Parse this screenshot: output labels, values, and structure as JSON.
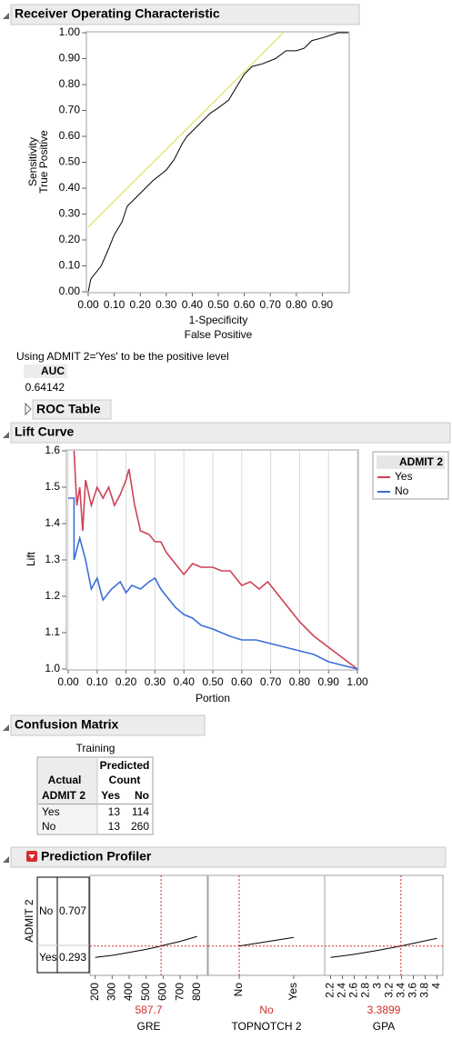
{
  "roc_section": {
    "title": "Receiver Operating Characteristic",
    "note": "Using ADMIT 2='Yes' to be the positive level",
    "auc_label": "AUC",
    "auc": 0.64142,
    "roc_table": "ROC Table"
  },
  "lift_section": {
    "title": "Lift Curve"
  },
  "chart_data": [
    {
      "type": "line",
      "xlabel": [
        "1-Specificity",
        "False Positive"
      ],
      "ylabel": [
        "Sensitivity",
        "True Positive"
      ],
      "xlim": [
        0,
        1
      ],
      "ylim": [
        0,
        1
      ],
      "grid": false,
      "xticks": [
        {
          "value": 0,
          "label": "0.00"
        },
        {
          "value": 0.1,
          "label": "0.10"
        },
        {
          "value": 0.2,
          "label": "0.20"
        },
        {
          "value": 0.3,
          "label": "0.30"
        },
        {
          "value": 0.4,
          "label": "0.40"
        },
        {
          "value": 0.5,
          "label": "0.50"
        },
        {
          "value": 0.6,
          "label": "0.60"
        },
        {
          "value": 0.7,
          "label": "0.70"
        },
        {
          "value": 0.8,
          "label": "0.80"
        },
        {
          "value": 0.9,
          "label": "0.90"
        }
      ],
      "yticks": [
        {
          "value": 0,
          "label": "0.00"
        },
        {
          "value": 0.1,
          "label": "0.10"
        },
        {
          "value": 0.2,
          "label": "0.20"
        },
        {
          "value": 0.3,
          "label": "0.30"
        },
        {
          "value": 0.4,
          "label": "0.40"
        },
        {
          "value": 0.5,
          "label": "0.50"
        },
        {
          "value": 0.6,
          "label": "0.60"
        },
        {
          "value": 0.7,
          "label": "0.70"
        },
        {
          "value": 0.8,
          "label": "0.80"
        },
        {
          "value": 0.9,
          "label": "0.90"
        },
        {
          "value": 1,
          "label": "1.00"
        }
      ],
      "reference_line": {
        "color": "#e2e25c",
        "x": [
          0,
          0.75
        ],
        "values": [
          0.25,
          1
        ]
      },
      "series": [
        {
          "color": "#000000",
          "x": [
            0,
            0.01,
            0.05,
            0.08,
            0.1,
            0.13,
            0.15,
            0.18,
            0.22,
            0.25,
            0.3,
            0.33,
            0.36,
            0.38,
            0.42,
            0.47,
            0.5,
            0.54,
            0.57,
            0.6,
            0.63,
            0.67,
            0.72,
            0.76,
            0.8,
            0.83,
            0.86,
            0.9,
            0.93,
            0.96,
            1
          ],
          "values": [
            0,
            0.05,
            0.1,
            0.17,
            0.22,
            0.27,
            0.33,
            0.36,
            0.4,
            0.43,
            0.47,
            0.51,
            0.57,
            0.6,
            0.64,
            0.69,
            0.71,
            0.74,
            0.79,
            0.84,
            0.87,
            0.88,
            0.9,
            0.93,
            0.93,
            0.94,
            0.97,
            0.98,
            0.99,
            1,
            1
          ]
        }
      ]
    },
    {
      "type": "line",
      "xlabel": [
        "Portion"
      ],
      "ylabel": [
        "Lift"
      ],
      "legend_title": "ADMIT 2",
      "xlim": [
        0,
        1
      ],
      "ylim": [
        1,
        1.6
      ],
      "grid": true,
      "xticks": [
        {
          "value": 0,
          "label": "0.00"
        },
        {
          "value": 0.1,
          "label": "0.10"
        },
        {
          "value": 0.2,
          "label": "0.20"
        },
        {
          "value": 0.3,
          "label": "0.30"
        },
        {
          "value": 0.4,
          "label": "0.40"
        },
        {
          "value": 0.5,
          "label": "0.50"
        },
        {
          "value": 0.6,
          "label": "0.60"
        },
        {
          "value": 0.7,
          "label": "0.70"
        },
        {
          "value": 0.8,
          "label": "0.80"
        },
        {
          "value": 0.9,
          "label": "0.90"
        },
        {
          "value": 1,
          "label": "1.00"
        }
      ],
      "yticks": [
        {
          "value": 1,
          "label": "1.0"
        },
        1.1,
        1.2,
        1.3,
        1.4,
        1.5,
        1.6
      ],
      "series": [
        {
          "name": "Yes",
          "color": "#cc4256",
          "x": [
            0.02,
            0.03,
            0.04,
            0.05,
            0.06,
            0.08,
            0.1,
            0.12,
            0.14,
            0.16,
            0.18,
            0.2,
            0.21,
            0.23,
            0.25,
            0.28,
            0.3,
            0.32,
            0.34,
            0.36,
            0.38,
            0.4,
            0.43,
            0.46,
            0.5,
            0.53,
            0.56,
            0.6,
            0.63,
            0.66,
            0.69,
            0.72,
            0.76,
            0.8,
            0.85,
            0.9,
            0.95,
            1
          ],
          "values": [
            1.6,
            1.45,
            1.5,
            1.38,
            1.52,
            1.45,
            1.5,
            1.47,
            1.5,
            1.45,
            1.48,
            1.52,
            1.55,
            1.45,
            1.38,
            1.37,
            1.35,
            1.35,
            1.32,
            1.3,
            1.28,
            1.26,
            1.29,
            1.28,
            1.28,
            1.27,
            1.27,
            1.23,
            1.24,
            1.22,
            1.24,
            1.21,
            1.17,
            1.13,
            1.09,
            1.06,
            1.03,
            1
          ]
        },
        {
          "name": "No",
          "color": "#3a6fd6",
          "x": [
            0,
            0.02,
            0.02,
            0.04,
            0.06,
            0.08,
            0.1,
            0.12,
            0.15,
            0.18,
            0.2,
            0.22,
            0.25,
            0.28,
            0.3,
            0.32,
            0.35,
            0.37,
            0.4,
            0.43,
            0.46,
            0.5,
            0.53,
            0.56,
            0.6,
            0.65,
            0.7,
            0.75,
            0.8,
            0.85,
            0.9,
            0.95,
            1
          ],
          "values": [
            1.47,
            1.47,
            1.3,
            1.36,
            1.3,
            1.22,
            1.25,
            1.19,
            1.22,
            1.24,
            1.21,
            1.23,
            1.22,
            1.24,
            1.25,
            1.22,
            1.19,
            1.17,
            1.15,
            1.14,
            1.12,
            1.11,
            1.1,
            1.09,
            1.08,
            1.08,
            1.07,
            1.06,
            1.05,
            1.04,
            1.02,
            1.01,
            1
          ]
        }
      ]
    }
  ],
  "confusion_matrix": {
    "title": "Confusion Matrix",
    "caption": "Training",
    "col_header": [
      "Predicted",
      "Count"
    ],
    "row_header": "Actual",
    "row_var": "ADMIT 2",
    "columns": [
      "Yes",
      "No"
    ],
    "rows": [
      {
        "label": "Yes",
        "values": [
          13,
          114
        ]
      },
      {
        "label": "No",
        "values": [
          13,
          260
        ]
      }
    ]
  },
  "profiler": {
    "title": "Prediction Profiler",
    "response": "ADMIT 2",
    "ylim": [
      0,
      1
    ],
    "levels": [
      {
        "label": "No",
        "value": 0.707
      },
      {
        "label": "Yes",
        "value": 0.293
      }
    ],
    "factors": [
      {
        "name": "GRE",
        "current": 587.7,
        "xlim": [
          170,
          860
        ],
        "xticks": [
          200,
          300,
          400,
          500,
          600,
          700,
          800
        ],
        "curve_x": [
          200,
          300,
          400,
          500,
          587.7,
          600,
          700,
          800
        ],
        "curve_y": [
          0.18,
          0.2,
          0.23,
          0.26,
          0.293,
          0.3,
          0.34,
          0.39
        ]
      },
      {
        "name": "TOPNOTCH 2",
        "current": "No",
        "categories": [
          "No",
          "Yes"
        ],
        "curve_y": [
          0.293,
          0.38
        ]
      },
      {
        "name": "GPA",
        "current": 3.3899,
        "xlim": [
          2.1,
          4.1
        ],
        "xticks": [
          2.2,
          2.4,
          2.6,
          2.8,
          3,
          3.2,
          3.4,
          3.6,
          3.8,
          4
        ],
        "curve_x": [
          2.2,
          2.6,
          3,
          3.3899,
          3.6,
          4
        ],
        "curve_y": [
          0.18,
          0.21,
          0.25,
          0.293,
          0.32,
          0.37
        ]
      }
    ]
  }
}
